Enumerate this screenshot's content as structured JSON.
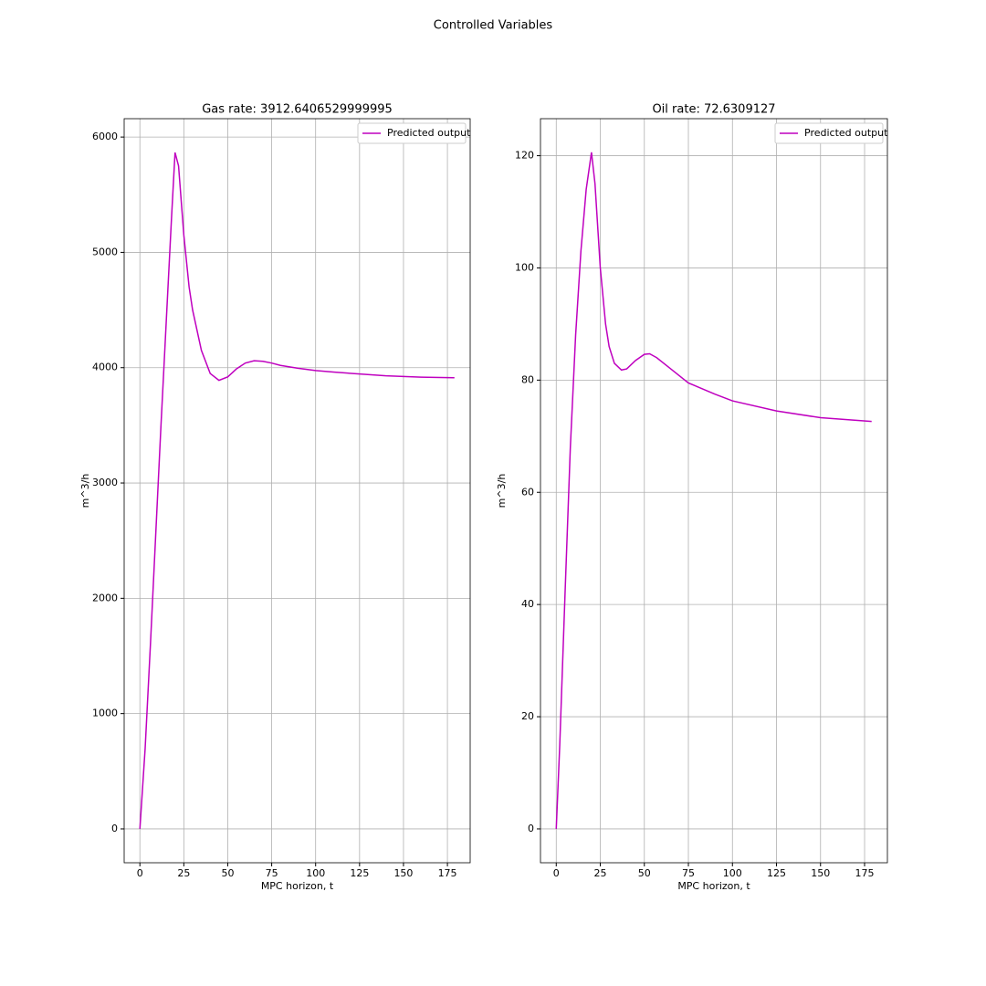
{
  "title": "Controlled Variables",
  "chart_data": [
    {
      "type": "line",
      "title": "Gas rate: 3912.6406529999995",
      "x_label": "MPC horizon, t",
      "y_label": "m^3/h",
      "x": [
        0,
        3,
        6,
        9,
        12,
        15,
        18,
        20,
        22,
        25,
        28,
        30,
        35,
        40,
        45,
        50,
        55,
        60,
        65,
        70,
        75,
        80,
        90,
        100,
        110,
        125,
        140,
        160,
        179
      ],
      "series": [
        {
          "name": "Predicted output",
          "color": "#bf00bf",
          "values": [
            0,
            700,
            1600,
            2550,
            3500,
            4400,
            5300,
            5866,
            5750,
            5150,
            4700,
            4500,
            4150,
            3950,
            3890,
            3920,
            3990,
            4040,
            4060,
            4055,
            4040,
            4020,
            3995,
            3975,
            3962,
            3945,
            3930,
            3918,
            3912.6406529999995
          ]
        }
      ],
      "xlim": [
        -8.95,
        187.95
      ],
      "xticks": [
        0,
        25,
        50,
        75,
        100,
        125,
        150,
        175
      ],
      "ylim": [
        -293.3,
        6159.3
      ],
      "yticks": [
        0,
        1000,
        2000,
        3000,
        4000,
        5000,
        6000
      ],
      "grid": true,
      "legend": "upper right"
    },
    {
      "type": "line",
      "title": "Oil rate: 72.6309127",
      "x_label": "MPC horizon, t",
      "y_label": "m^3/h",
      "x": [
        0,
        2,
        5,
        8,
        11,
        14,
        17,
        20,
        22,
        25,
        28,
        30,
        33,
        37,
        40,
        45,
        50,
        53,
        57,
        65,
        75,
        90,
        100,
        125,
        150,
        179
      ],
      "series": [
        {
          "name": "Predicted output",
          "color": "#bf00bf",
          "values": [
            0,
            15,
            42,
            68,
            88,
            103,
            114,
            120.6,
            115,
            100,
            90,
            86,
            83,
            81.8,
            82,
            83.5,
            84.6,
            84.7,
            84,
            82,
            79.5,
            77.5,
            76.3,
            74.5,
            73.3,
            72.6309127
          ]
        }
      ],
      "xlim": [
        -8.95,
        187.95
      ],
      "xticks": [
        0,
        25,
        50,
        75,
        100,
        125,
        150,
        175
      ],
      "ylim": [
        -6.03,
        126.6
      ],
      "yticks": [
        0,
        20,
        40,
        60,
        80,
        100,
        120
      ],
      "grid": true,
      "legend": "upper right"
    }
  ]
}
